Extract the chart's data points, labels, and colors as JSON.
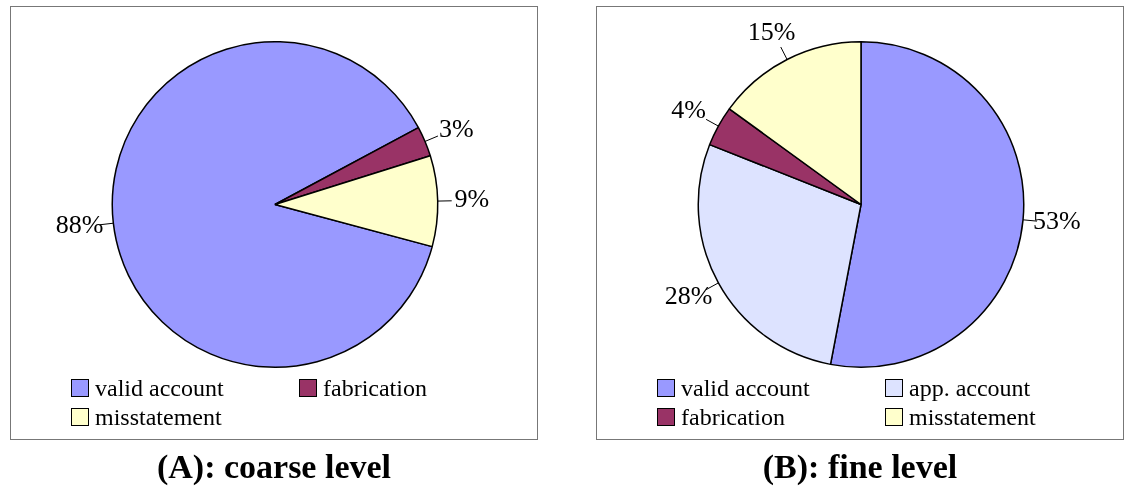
{
  "chart_data": [
    {
      "type": "pie",
      "title": "(A): coarse level",
      "categories": [
        "valid account",
        "fabrication",
        "misstatement"
      ],
      "values": [
        88,
        3,
        9
      ],
      "colors": [
        "#9999ff",
        "#993366",
        "#ffffcc"
      ],
      "value_labels": [
        "88%",
        "3%",
        "9%"
      ],
      "legend": "bottom"
    },
    {
      "type": "pie",
      "title": "(B): fine level",
      "categories": [
        "valid account",
        "app. account",
        "fabrication",
        "misstatement"
      ],
      "values": [
        53,
        28,
        4,
        15
      ],
      "colors": [
        "#9999ff",
        "#dde3ff",
        "#993366",
        "#ffffcc"
      ],
      "value_labels": [
        "53%",
        "28%",
        "4%",
        "15%"
      ],
      "legend": "bottom"
    }
  ]
}
